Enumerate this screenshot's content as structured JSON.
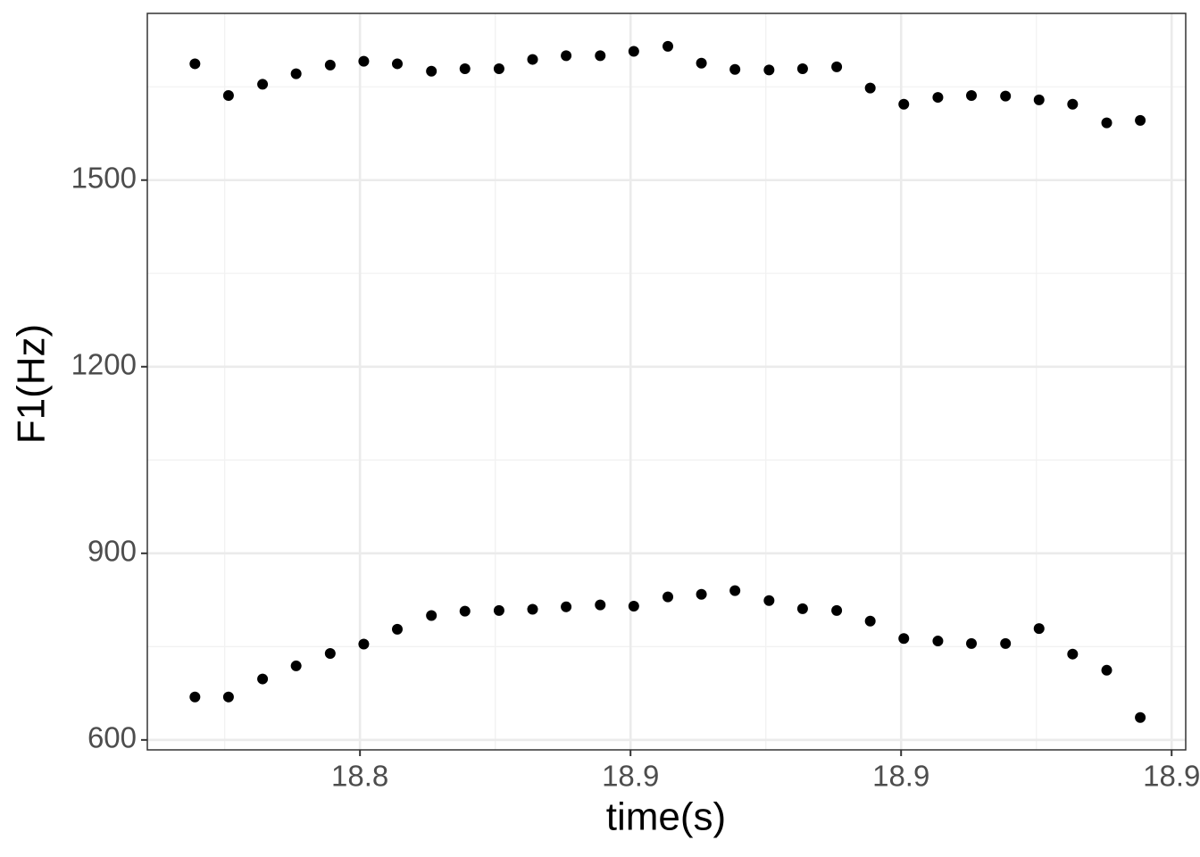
{
  "chart_data": {
    "type": "scatter",
    "xlabel": "time(s)",
    "ylabel": "F1(Hz)",
    "x": [
      18.7695,
      18.7757,
      18.782,
      18.7882,
      18.7945,
      18.8007,
      18.8069,
      18.8132,
      18.8194,
      18.8257,
      18.8319,
      18.8381,
      18.8444,
      18.8506,
      18.8569,
      18.8631,
      18.8693,
      18.8756,
      18.8818,
      18.8881,
      18.8943,
      18.9005,
      18.9068,
      18.913,
      18.9193,
      18.9255,
      18.9317,
      18.938,
      18.9442
    ],
    "series": [
      {
        "color": "#000000",
        "values": [
          1687,
          1636,
          1654,
          1671,
          1685,
          1691,
          1687,
          1675,
          1679,
          1679,
          1694,
          1700,
          1700,
          1707,
          1715,
          1688,
          1678,
          1677,
          1679,
          1682,
          1648,
          1622,
          1633,
          1636,
          1635,
          1629,
          1622,
          1592,
          1596
        ]
      },
      {
        "color": "#000000",
        "values": [
          669,
          669,
          698,
          719,
          739,
          754,
          778,
          800,
          807,
          808,
          810,
          814,
          817,
          815,
          830,
          834,
          840,
          824,
          811,
          808,
          791,
          763,
          759,
          755,
          755,
          779,
          738,
          712,
          636
        ]
      }
    ],
    "xlim": [
      18.7607,
      18.9526
    ],
    "xticks": [
      18.8,
      {
        "value": 18.85,
        "label": "18.9"
      },
      18.9,
      {
        "value": 18.95,
        "label": "18.9"
      }
    ],
    "ylim": [
      584,
      1768
    ],
    "yticks": [
      600,
      900,
      1200,
      1500
    ],
    "grid": true
  }
}
